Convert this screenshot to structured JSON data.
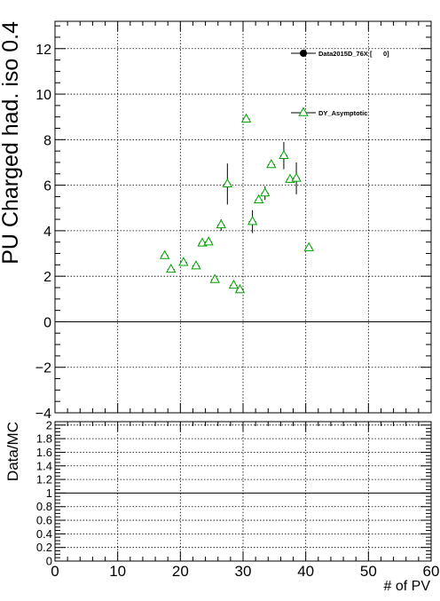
{
  "chart_data": [
    {
      "type": "scatter",
      "panel": "main",
      "ylabel": "PU Charged had. iso 0.4",
      "xlim": [
        0,
        60
      ],
      "ylim": [
        -4,
        13.2
      ],
      "yticks": [
        -4,
        -2,
        0,
        2,
        4,
        6,
        8,
        10,
        12
      ],
      "ytick_labels": [
        "−4",
        "−2",
        "0",
        "2",
        "4",
        "6",
        "8",
        "10",
        "12"
      ],
      "grid": true,
      "reference_line": 0,
      "legend_position": "top-right",
      "series": [
        {
          "name": "Data2015D_76X [      0]",
          "marker": "filled-circle",
          "color": "#000000",
          "points": []
        },
        {
          "name": "DY_Asymptotic",
          "marker": "open-triangle",
          "color": "#00a000",
          "points": [
            {
              "x": 17.5,
              "y": 2.9,
              "err": 0
            },
            {
              "x": 18.5,
              "y": 2.3,
              "err": 0
            },
            {
              "x": 20.5,
              "y": 2.6,
              "err": 0
            },
            {
              "x": 22.5,
              "y": 2.45,
              "err": 0
            },
            {
              "x": 23.5,
              "y": 3.45,
              "err": 0
            },
            {
              "x": 24.5,
              "y": 3.5,
              "err": 0
            },
            {
              "x": 25.5,
              "y": 1.85,
              "err": 0
            },
            {
              "x": 26.5,
              "y": 4.25,
              "err": 0.25
            },
            {
              "x": 27.5,
              "y": 6.05,
              "err": 0.9
            },
            {
              "x": 28.5,
              "y": 1.6,
              "err": 0
            },
            {
              "x": 29.5,
              "y": 1.4,
              "err": 0
            },
            {
              "x": 30.5,
              "y": 8.9,
              "err": 0
            },
            {
              "x": 31.5,
              "y": 4.4,
              "err": 0.5
            },
            {
              "x": 32.5,
              "y": 5.35,
              "err": 0
            },
            {
              "x": 33.5,
              "y": 5.65,
              "err": 0.3
            },
            {
              "x": 34.5,
              "y": 6.9,
              "err": 0
            },
            {
              "x": 36.5,
              "y": 7.3,
              "err": 0.6
            },
            {
              "x": 37.5,
              "y": 6.25,
              "err": 0
            },
            {
              "x": 38.5,
              "y": 6.3,
              "err": 0.7
            },
            {
              "x": 40.5,
              "y": 3.25,
              "err": 0
            }
          ]
        }
      ]
    },
    {
      "type": "scatter",
      "panel": "ratio",
      "xlabel": "# of PV",
      "ylabel": "Data/MC",
      "xlim": [
        0,
        60
      ],
      "ylim": [
        0,
        2.05
      ],
      "xticks": [
        0,
        10,
        20,
        30,
        40,
        50,
        60
      ],
      "xtick_labels": [
        "0",
        "10",
        "20",
        "30",
        "40",
        "50",
        "60"
      ],
      "yticks": [
        0,
        0.2,
        0.4,
        0.6,
        0.8,
        1,
        1.2,
        1.4,
        1.6,
        1.8,
        2
      ],
      "ytick_labels": [
        "0",
        "0.2",
        "0.4",
        "0.6",
        "0.8",
        "1",
        "1.2",
        "1.4",
        "1.6",
        "1.8",
        "2"
      ],
      "grid": true,
      "reference_line": 1,
      "points": []
    }
  ]
}
